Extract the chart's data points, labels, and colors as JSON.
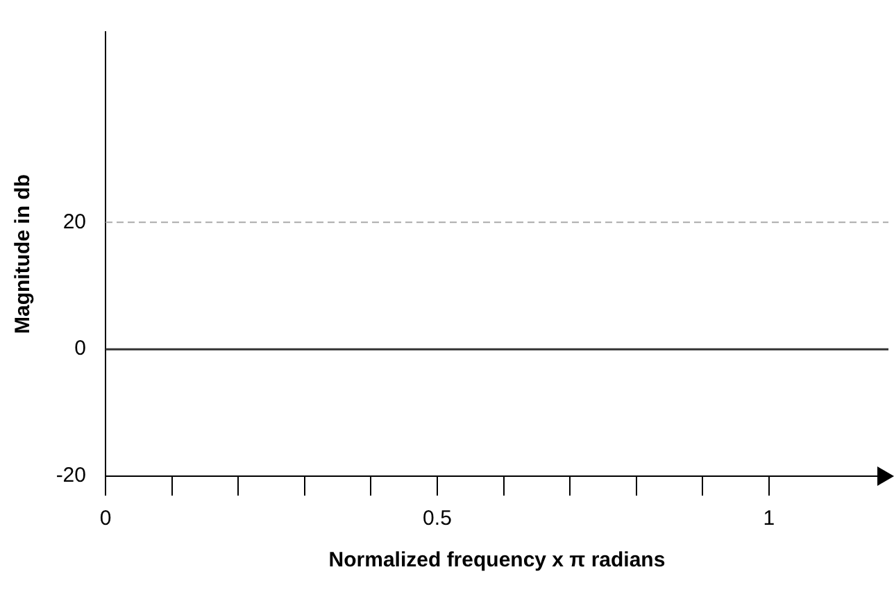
{
  "chart_data": {
    "type": "line",
    "xlabel": "Normalized frequency x π radians",
    "ylabel": "Magnitude in db",
    "series": [
      {
        "color": "#333333",
        "x": [
          0,
          1.18
        ],
        "values": [
          0,
          0
        ]
      }
    ],
    "xlim": [
      0,
      1.18
    ],
    "ylim": [
      -20,
      50
    ],
    "xticks": [
      0,
      {
        "value": 0.1,
        "label": null
      },
      {
        "value": 0.2,
        "label": null
      },
      {
        "value": 0.3,
        "label": null
      },
      {
        "value": 0.4,
        "label": null
      },
      0.5,
      {
        "value": 0.6,
        "label": null
      },
      {
        "value": 0.7,
        "label": null
      },
      {
        "value": 0.8,
        "label": null
      },
      {
        "value": 0.9,
        "label": null
      },
      1
    ],
    "yticks": [
      -20,
      0,
      20
    ],
    "ref_lines": [
      {
        "axis": "y",
        "value": 20,
        "color": "#aaaaaa",
        "line_style": "dashed"
      }
    ],
    "grid": false,
    "legend": false,
    "marker": "none",
    "line_style": "solid"
  }
}
